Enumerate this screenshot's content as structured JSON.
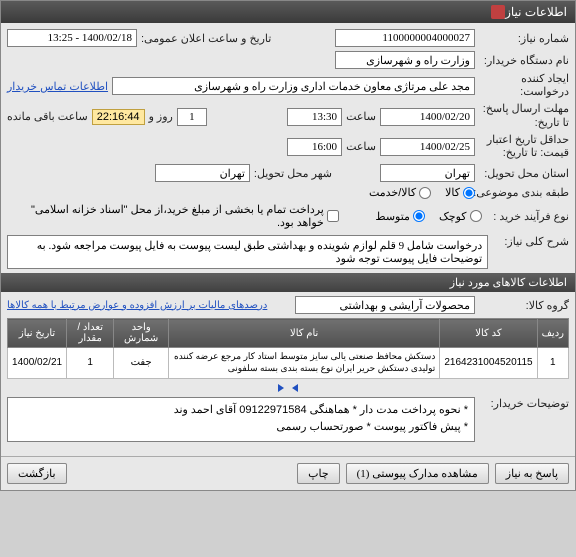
{
  "window_title": "اطلاعات نیاز",
  "top": {
    "need_no_label": "شماره نیاز:",
    "need_no": "1100000004000027",
    "ann_label": "تاریخ و ساعت اعلان عمومی:",
    "ann_value": "1400/02/18 - 13:25",
    "org_label": "نام دستگاه خریدار:",
    "org_value": "وزارت راه و شهرسازی",
    "creator_label": "ایجاد کننده درخواست:",
    "creator_value": "مجد علی  مرتاژی معاون خدمات اداری وزارت راه و شهرسازی",
    "contact_link": "اطلاعات تماس خریدار",
    "deadline_send_label": "مهلت ارسال پاسخ:\nتا تاریخ:",
    "deadline_send_date": "1400/02/20",
    "time_label": "ساعت",
    "deadline_send_time": "13:30",
    "day_label": "روز و",
    "day_value": "1",
    "countdown": "22:16:44",
    "remaining_label": "ساعت باقی مانده",
    "validity_label": "حداقل تاریخ اعتبار\nقیمت: تا تاریخ:",
    "validity_date": "1400/02/25",
    "validity_time": "16:00",
    "delivery_prov_label": "استان محل تحویل:",
    "delivery_prov": "تهران",
    "delivery_city_label": "شهر محل تحویل:",
    "delivery_city": "تهران",
    "budget_label": "طبقه بندی موضوعی:",
    "budget_goods": "کالا",
    "budget_service": "کالا/خدمت",
    "proc_type_label": "نوع فرآیند خرید :",
    "proc_small": "کوچک",
    "proc_medium": "متوسط",
    "partial_label": "پرداخت تمام یا بخشی از مبلغ خرید،از محل \"اسناد خزانه اسلامی\" خواهد بود.",
    "desc_label": "شرح کلی نیاز:",
    "desc_text": "درخواست شامل 9 قلم لوازم شوینده و بهداشتی طبق لیست پیوست به فایل پیوست مراجعه شود. به توضیحات فایل پیوست توجه شود"
  },
  "goods_section": "اطلاعات کالاهای مورد نیاز",
  "group_label": "گروه کالا:",
  "group_value": "محصولات آرایشی و بهداشتی",
  "vat_link": "درصدهای مالیات بر ارزش افزوده و عوارض مرتبط با همه کالاها",
  "table": {
    "headers": [
      "ردیف",
      "کد کالا",
      "نام کالا",
      "واحد شمارش",
      "تعداد / مقدار",
      "تاریخ نیاز"
    ],
    "rows": [
      [
        "1",
        "2164231004520115",
        "دستکش محافظ صنعتی یالی سایز متوسط استاد کار مرجع عرضه کننده تولیدی دستکش حریر ایران نوع بسته بندی بسته سلفونی",
        "جفت",
        "1",
        "1400/02/21"
      ]
    ]
  },
  "buyer_notes_label": "توضیحات خریدار:",
  "buyer_notes": "* نحوه پرداخت مدت دار * هماهنگی 09122971584 آقای احمد وند\n* پیش فاکتور پیوست * صورتحساب رسمی",
  "buttons": {
    "respond": "پاسخ به نیاز",
    "attachments": "مشاهده مدارک پیوستی (1)",
    "print": "چاپ",
    "close": "بازگشت"
  },
  "arrow_color": "#2050c0"
}
